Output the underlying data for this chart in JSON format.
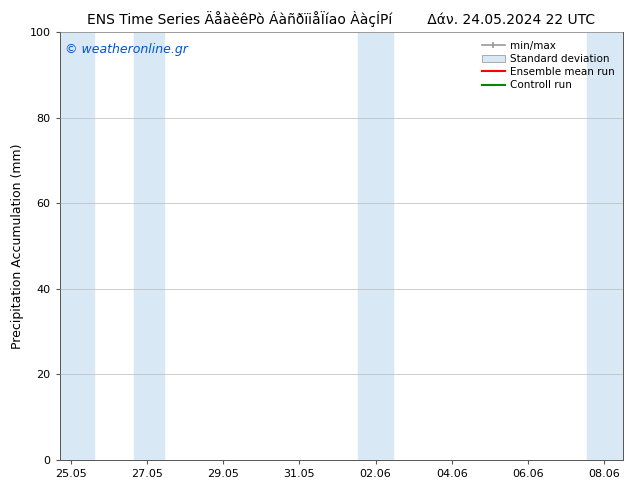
{
  "title": "ENS Time Series ÄåàèêPò ÁàñðïiåÏíao ÀàçÍPí",
  "title_right": "Δάν. 24.05.2024 22 UTC",
  "ylabel": "Precipitation Accumulation (mm)",
  "watermark": "© weatheronline.gr",
  "watermark_color": "#0055cc",
  "ylim": [
    0,
    100
  ],
  "yticks": [
    0,
    20,
    40,
    60,
    80,
    100
  ],
  "x_dates": [
    "25.05",
    "27.05",
    "29.05",
    "31.05",
    "02.06",
    "04.06",
    "06.06",
    "08.06"
  ],
  "x_positions": [
    0,
    2,
    4,
    6,
    8,
    10,
    12,
    14
  ],
  "xlim_min": -0.3,
  "xlim_max": 14.5,
  "shaded_bands": [
    {
      "x_start": -0.3,
      "x_end": 0.6
    },
    {
      "x_start": 1.65,
      "x_end": 2.45
    },
    {
      "x_start": 7.55,
      "x_end": 8.45
    },
    {
      "x_start": 13.55,
      "x_end": 14.5
    }
  ],
  "band_color": "#d8e8f5",
  "legend_labels": [
    "min/max",
    "Standard deviation",
    "Ensemble mean run",
    "Controll run"
  ],
  "legend_line_colors": [
    "#999999",
    "#c8daea",
    "#ff0000",
    "#008800"
  ],
  "title_fontsize": 10,
  "axis_label_fontsize": 9,
  "tick_fontsize": 8,
  "watermark_fontsize": 9,
  "legend_fontsize": 7.5,
  "background_color": "#ffffff"
}
